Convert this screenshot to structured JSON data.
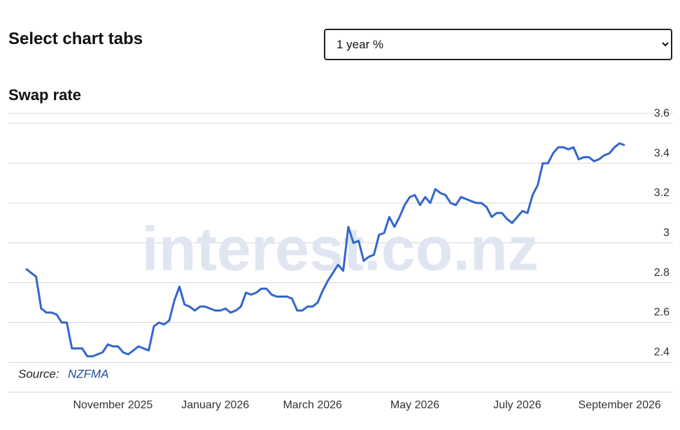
{
  "header": {
    "title": "Select chart tabs",
    "select": "1 year %"
  },
  "chart_data": {
    "type": "line",
    "title": "Swap rate",
    "watermark": "interest.co.nz",
    "source_label": "Source:",
    "source": "NZFMA",
    "categories": [
      null,
      null,
      null,
      null,
      null,
      null,
      null,
      null,
      null,
      null,
      null,
      null,
      null,
      null,
      null,
      null,
      null,
      "November 2025",
      null,
      null,
      null,
      null,
      null,
      null,
      null,
      null,
      null,
      null,
      null,
      null,
      null,
      null,
      null,
      null,
      null,
      null,
      null,
      "January 2026",
      null,
      null,
      null,
      null,
      null,
      null,
      null,
      null,
      null,
      null,
      null,
      null,
      null,
      null,
      null,
      null,
      null,
      null,
      "March 2026",
      null,
      null,
      null,
      null,
      null,
      null,
      null,
      null,
      null,
      null,
      null,
      null,
      null,
      null,
      null,
      null,
      null,
      null,
      null,
      "May 2026",
      null,
      null,
      null,
      null,
      null,
      null,
      null,
      null,
      null,
      null,
      null,
      null,
      null,
      null,
      null,
      null,
      null,
      null,
      null,
      "July 2026",
      null,
      null,
      null,
      null,
      null,
      null,
      null,
      null,
      null,
      null,
      null,
      null,
      null,
      null,
      null,
      null,
      null,
      null,
      null,
      "September 2026",
      null
    ],
    "series": [
      {
        "color": "#3366cc",
        "values": [
          2.87,
          2.85,
          2.83,
          2.67,
          2.65,
          2.65,
          2.64,
          2.6,
          2.6,
          2.47,
          2.47,
          2.47,
          2.43,
          2.43,
          2.44,
          2.45,
          2.49,
          2.48,
          2.48,
          2.45,
          2.44,
          2.46,
          2.48,
          2.47,
          2.46,
          2.58,
          2.6,
          2.59,
          2.61,
          2.71,
          2.78,
          2.69,
          2.68,
          2.66,
          2.68,
          2.68,
          2.67,
          2.66,
          2.66,
          2.67,
          2.65,
          2.66,
          2.68,
          2.75,
          2.74,
          2.75,
          2.77,
          2.77,
          2.74,
          2.73,
          2.73,
          2.73,
          2.72,
          2.66,
          2.66,
          2.68,
          2.68,
          2.7,
          2.76,
          2.81,
          2.85,
          2.89,
          2.86,
          3.08,
          3.0,
          3.01,
          2.91,
          2.93,
          2.94,
          3.04,
          3.05,
          3.13,
          3.08,
          3.13,
          3.19,
          3.23,
          3.24,
          3.19,
          3.23,
          3.2,
          3.27,
          3.25,
          3.24,
          3.2,
          3.19,
          3.23,
          3.22,
          3.21,
          3.2,
          3.2,
          3.18,
          3.13,
          3.15,
          3.15,
          3.12,
          3.1,
          3.13,
          3.16,
          3.15,
          3.24,
          3.29,
          3.4,
          3.4,
          3.45,
          3.48,
          3.48,
          3.47,
          3.48,
          3.42,
          3.43,
          3.43,
          3.41,
          3.42,
          3.44,
          3.45,
          3.48,
          3.5,
          3.49
        ]
      }
    ],
    "ylim": [
      2.25,
      3.65
    ],
    "yticks": [
      2.4,
      2.6,
      2.8,
      3.0,
      3.2,
      3.4,
      3.6
    ],
    "grid": true
  }
}
